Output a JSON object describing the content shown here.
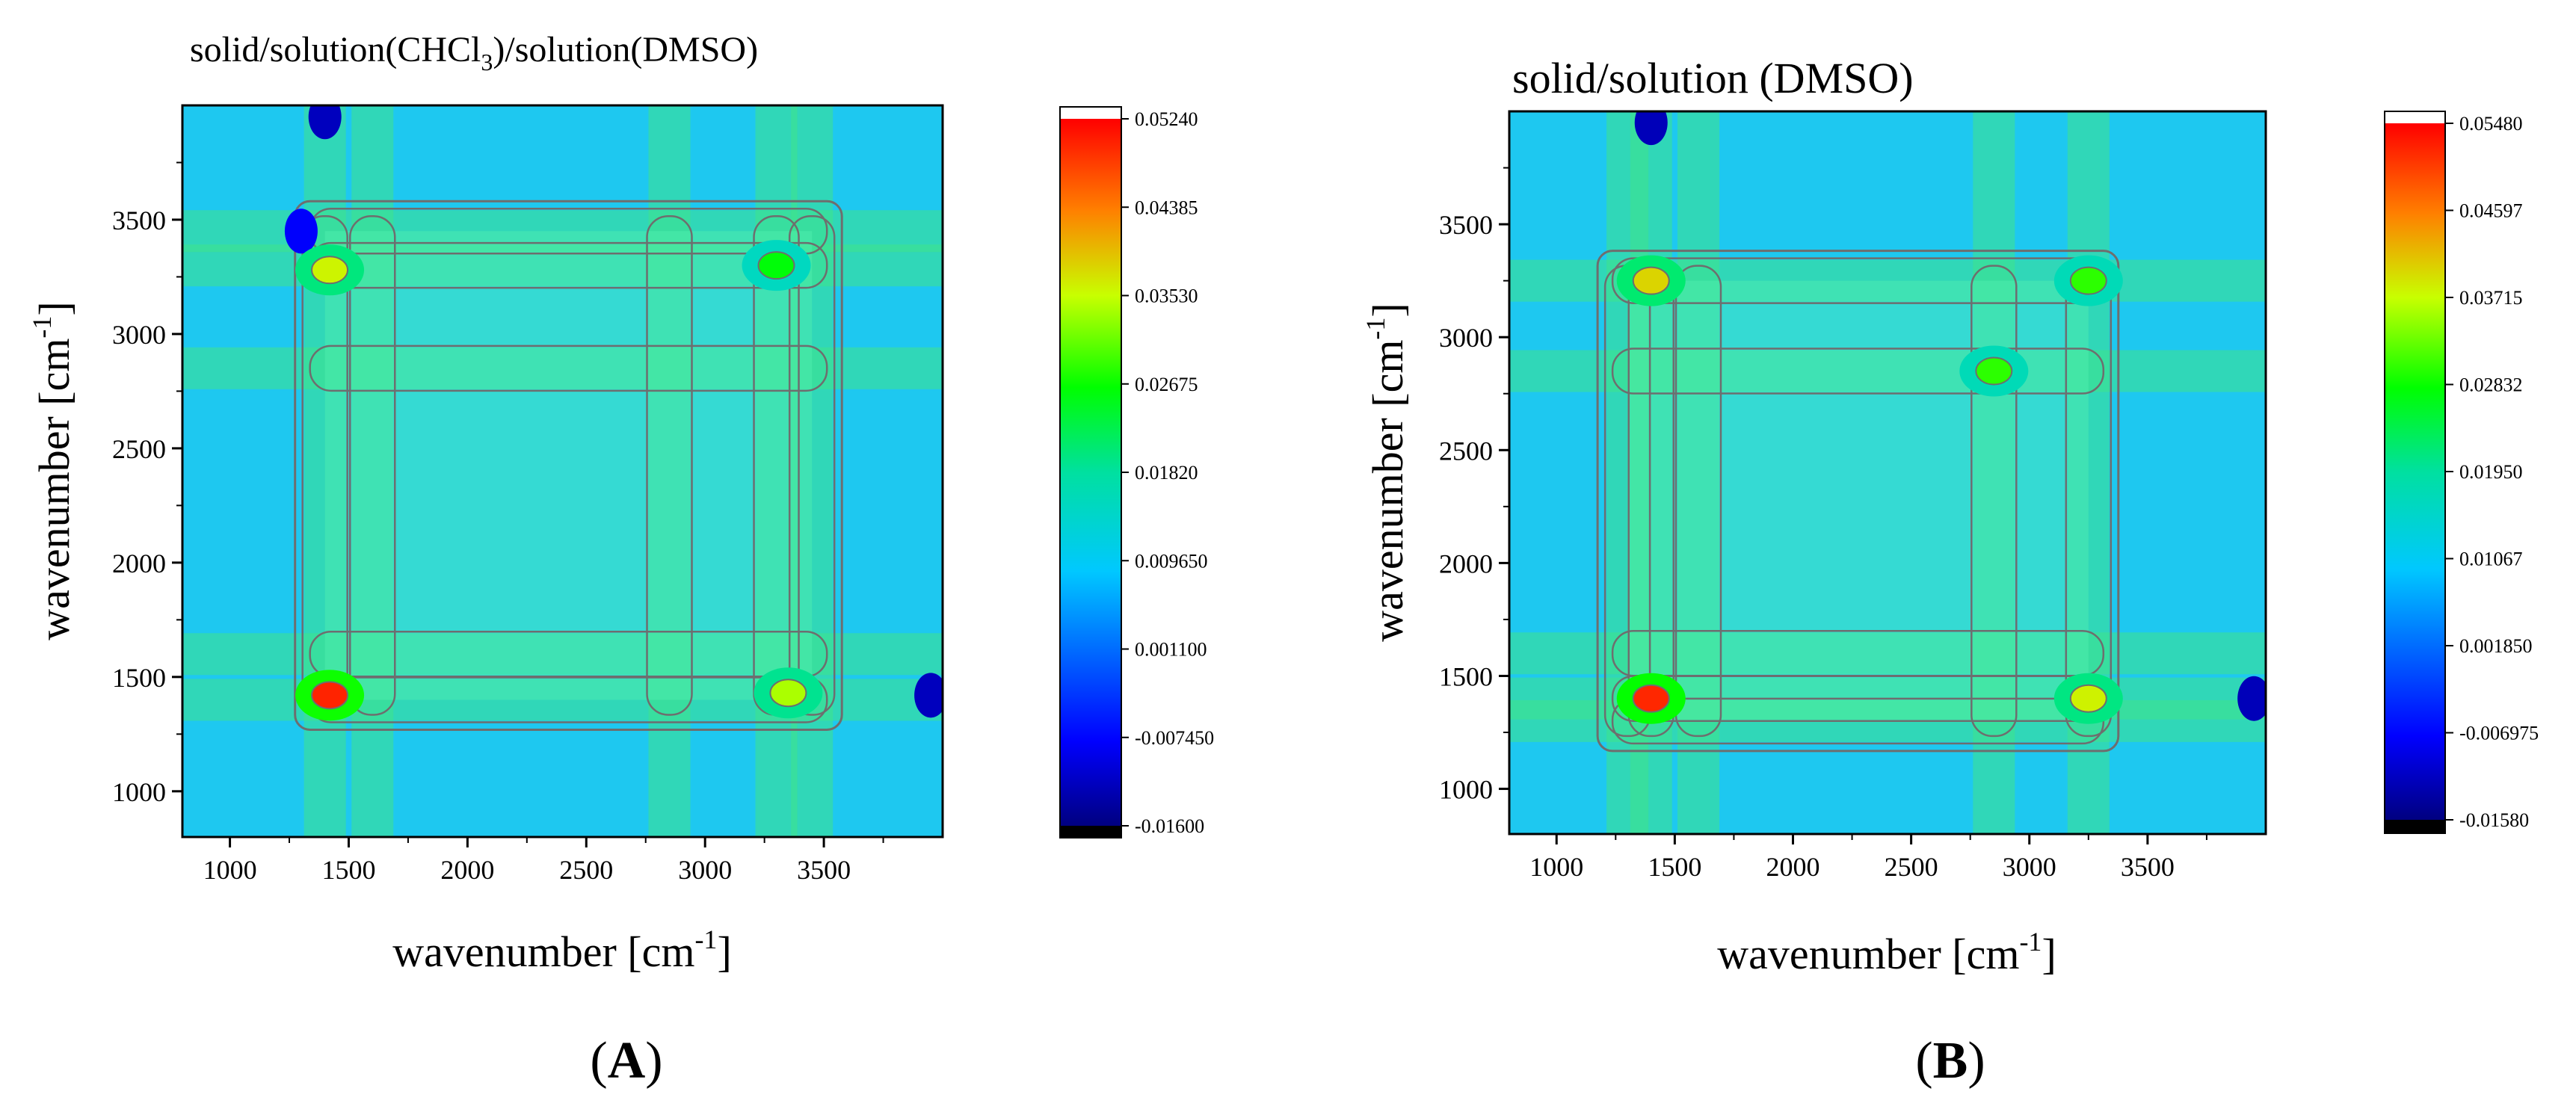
{
  "chart_data": [
    {
      "type": "heatmap",
      "panel_label": "A",
      "title_parts": [
        "solid/solution(CHCl",
        "3",
        ")/solution(DMSO)"
      ],
      "xlabel_parts": [
        "wavenumber [cm",
        "-1",
        "]"
      ],
      "ylabel_parts": [
        "wavenumber [cm",
        "-1",
        "]"
      ],
      "xlim": [
        800,
        4000
      ],
      "ylim": [
        800,
        4000
      ],
      "x_ticks": [
        1000,
        1500,
        2000,
        2500,
        3000,
        3500
      ],
      "y_ticks": [
        1000,
        1500,
        2000,
        2500,
        3000,
        3500
      ],
      "colorbar_ticks": [
        "0.05240",
        "0.04385",
        "0.03530",
        "0.02675",
        "0.01820",
        "0.009650",
        "0.001100",
        "-0.007450",
        "-0.01600"
      ],
      "colorbar_range": [
        -0.016,
        0.0524
      ],
      "peak_bands": [
        1400,
        1600,
        2850,
        3300,
        3450
      ],
      "peaks": [
        {
          "x": 1420,
          "y": 1420,
          "value": 0.05
        },
        {
          "x": 1420,
          "y": 3280,
          "value": 0.036
        },
        {
          "x": 3350,
          "y": 1430,
          "value": 0.034
        },
        {
          "x": 3300,
          "y": 3300,
          "value": 0.026
        }
      ],
      "negatives": [
        {
          "x": 1400,
          "y": 3950,
          "value": -0.012
        },
        {
          "x": 3950,
          "y": 1420,
          "value": -0.012
        },
        {
          "x": 1300,
          "y": 3450,
          "value": -0.008
        }
      ]
    },
    {
      "type": "heatmap",
      "panel_label": "B",
      "title_parts": [
        "solid/solution (DMSO)"
      ],
      "xlabel_parts": [
        "wavenumber [cm",
        "-1",
        "]"
      ],
      "ylabel_parts": [
        "wavenumber [cm",
        "-1",
        "]"
      ],
      "xlim": [
        800,
        4000
      ],
      "ylim": [
        800,
        4000
      ],
      "x_ticks": [
        1000,
        1500,
        2000,
        2500,
        3000,
        3500
      ],
      "y_ticks": [
        1000,
        1500,
        2000,
        2500,
        3000,
        3500
      ],
      "colorbar_ticks": [
        "0.05480",
        "0.04597",
        "0.03715",
        "0.02832",
        "0.01950",
        "0.01067",
        "0.001850",
        "-0.006975",
        "-0.01580"
      ],
      "colorbar_range": [
        -0.0158,
        0.0548
      ],
      "peak_bands": [
        1300,
        1400,
        1600,
        2850,
        3250
      ],
      "peaks": [
        {
          "x": 1400,
          "y": 1400,
          "value": 0.052
        },
        {
          "x": 1400,
          "y": 3250,
          "value": 0.04
        },
        {
          "x": 3250,
          "y": 1400,
          "value": 0.038
        },
        {
          "x": 2850,
          "y": 2850,
          "value": 0.03
        },
        {
          "x": 3250,
          "y": 3250,
          "value": 0.03
        }
      ],
      "negatives": [
        {
          "x": 1400,
          "y": 3950,
          "value": -0.012
        },
        {
          "x": 3950,
          "y": 1400,
          "value": -0.012
        }
      ]
    }
  ]
}
